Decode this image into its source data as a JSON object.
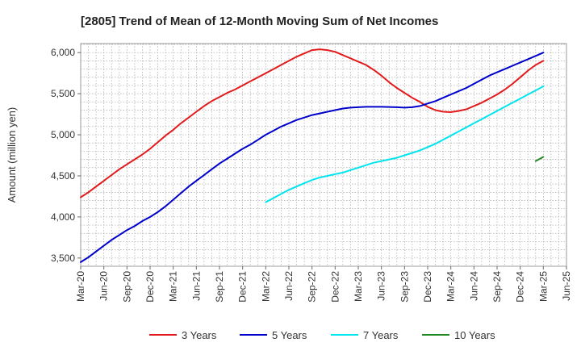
{
  "chart_data": {
    "type": "line",
    "title": "[2805]  Trend of Mean of 12-Month Moving Sum of Net Incomes",
    "xlabel": "",
    "ylabel": "Amount (million yen)",
    "x_ticks": [
      "Mar-20",
      "Jun-20",
      "Sep-20",
      "Dec-20",
      "Mar-21",
      "Jun-21",
      "Sep-21",
      "Dec-21",
      "Mar-22",
      "Jun-22",
      "Sep-22",
      "Dec-22",
      "Mar-23",
      "Jun-23",
      "Sep-23",
      "Dec-23",
      "Mar-24",
      "Jun-24",
      "Sep-24",
      "Dec-24",
      "Mar-25",
      "Jun-25"
    ],
    "y_ticks": [
      3500,
      4000,
      4500,
      5000,
      5500,
      6000
    ],
    "y_tick_labels": [
      "3,500",
      "4,000",
      "4,500",
      "5,000",
      "5,500",
      "6,000"
    ],
    "ylim": [
      3400,
      6110
    ],
    "grid": true,
    "legend_position": "bottom",
    "x": [
      "Mar-20",
      "Apr-20",
      "May-20",
      "Jun-20",
      "Jul-20",
      "Aug-20",
      "Sep-20",
      "Oct-20",
      "Nov-20",
      "Dec-20",
      "Jan-21",
      "Feb-21",
      "Mar-21",
      "Apr-21",
      "May-21",
      "Jun-21",
      "Jul-21",
      "Aug-21",
      "Sep-21",
      "Oct-21",
      "Nov-21",
      "Dec-21",
      "Jan-22",
      "Feb-22",
      "Mar-22",
      "Apr-22",
      "May-22",
      "Jun-22",
      "Jul-22",
      "Aug-22",
      "Sep-22",
      "Oct-22",
      "Nov-22",
      "Dec-22",
      "Jan-23",
      "Feb-23",
      "Mar-23",
      "Apr-23",
      "May-23",
      "Jun-23",
      "Jul-23",
      "Aug-23",
      "Sep-23",
      "Oct-23",
      "Nov-23",
      "Dec-23",
      "Jan-24",
      "Feb-24",
      "Mar-24",
      "Apr-24",
      "May-24",
      "Jun-24",
      "Jul-24",
      "Aug-24",
      "Sep-24",
      "Oct-24",
      "Nov-24",
      "Dec-24",
      "Jan-25",
      "Feb-25",
      "Mar-25"
    ],
    "series": [
      {
        "name": "3 Years",
        "color": "#e31a1c",
        "values": [
          4240,
          4300,
          4370,
          4440,
          4510,
          4580,
          4640,
          4700,
          4760,
          4830,
          4910,
          4990,
          5060,
          5140,
          5210,
          5280,
          5350,
          5410,
          5460,
          5510,
          5550,
          5600,
          5650,
          5700,
          5750,
          5800,
          5850,
          5900,
          5950,
          5990,
          6030,
          6040,
          6030,
          6010,
          5970,
          5930,
          5890,
          5850,
          5790,
          5720,
          5640,
          5570,
          5510,
          5450,
          5400,
          5340,
          5300,
          5280,
          5275,
          5290,
          5310,
          5350,
          5390,
          5440,
          5490,
          5550,
          5620,
          5700,
          5780,
          5850,
          5900
        ]
      },
      {
        "name": "5 Years",
        "color": "#0000cc",
        "values": [
          3450,
          3510,
          3580,
          3650,
          3720,
          3780,
          3840,
          3890,
          3950,
          4000,
          4060,
          4130,
          4210,
          4290,
          4370,
          4440,
          4510,
          4580,
          4650,
          4710,
          4770,
          4830,
          4880,
          4940,
          5000,
          5050,
          5100,
          5140,
          5180,
          5210,
          5240,
          5260,
          5280,
          5300,
          5320,
          5330,
          5335,
          5340,
          5340,
          5340,
          5338,
          5335,
          5330,
          5335,
          5350,
          5380,
          5410,
          5450,
          5490,
          5530,
          5570,
          5620,
          5670,
          5720,
          5760,
          5800,
          5840,
          5880,
          5920,
          5960,
          6000
        ]
      },
      {
        "name": "7 Years",
        "color": "#00e5ee",
        "values": [
          null,
          null,
          null,
          null,
          null,
          null,
          null,
          null,
          null,
          null,
          null,
          null,
          null,
          null,
          null,
          null,
          null,
          null,
          null,
          null,
          null,
          null,
          null,
          null,
          4180,
          4230,
          4280,
          4330,
          4370,
          4410,
          4450,
          4480,
          4500,
          4520,
          4540,
          4570,
          4600,
          4630,
          4660,
          4680,
          4700,
          4720,
          4750,
          4780,
          4810,
          4850,
          4890,
          4940,
          4990,
          5040,
          5090,
          5140,
          5190,
          5240,
          5290,
          5340,
          5390,
          5440,
          5490,
          5540,
          5590
        ]
      },
      {
        "name": "10 Years",
        "color": "#228b22",
        "values": [
          null,
          null,
          null,
          null,
          null,
          null,
          null,
          null,
          null,
          null,
          null,
          null,
          null,
          null,
          null,
          null,
          null,
          null,
          null,
          null,
          null,
          null,
          null,
          null,
          null,
          null,
          null,
          null,
          null,
          null,
          null,
          null,
          null,
          null,
          null,
          null,
          null,
          null,
          null,
          null,
          null,
          null,
          null,
          null,
          null,
          null,
          null,
          null,
          null,
          null,
          null,
          null,
          null,
          null,
          null,
          null,
          null,
          null,
          null,
          4680,
          4730
        ]
      }
    ]
  }
}
